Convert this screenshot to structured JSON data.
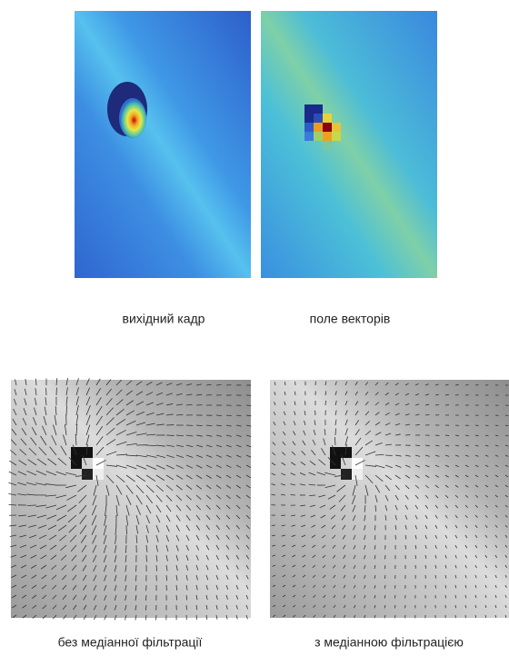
{
  "figure": {
    "panels": [
      {
        "caption": "вихідний кадр"
      },
      {
        "caption": "поле векторів"
      },
      {
        "caption": "без медіанної фільтрації"
      },
      {
        "caption": "з медіанною фільтрацією"
      }
    ]
  }
}
